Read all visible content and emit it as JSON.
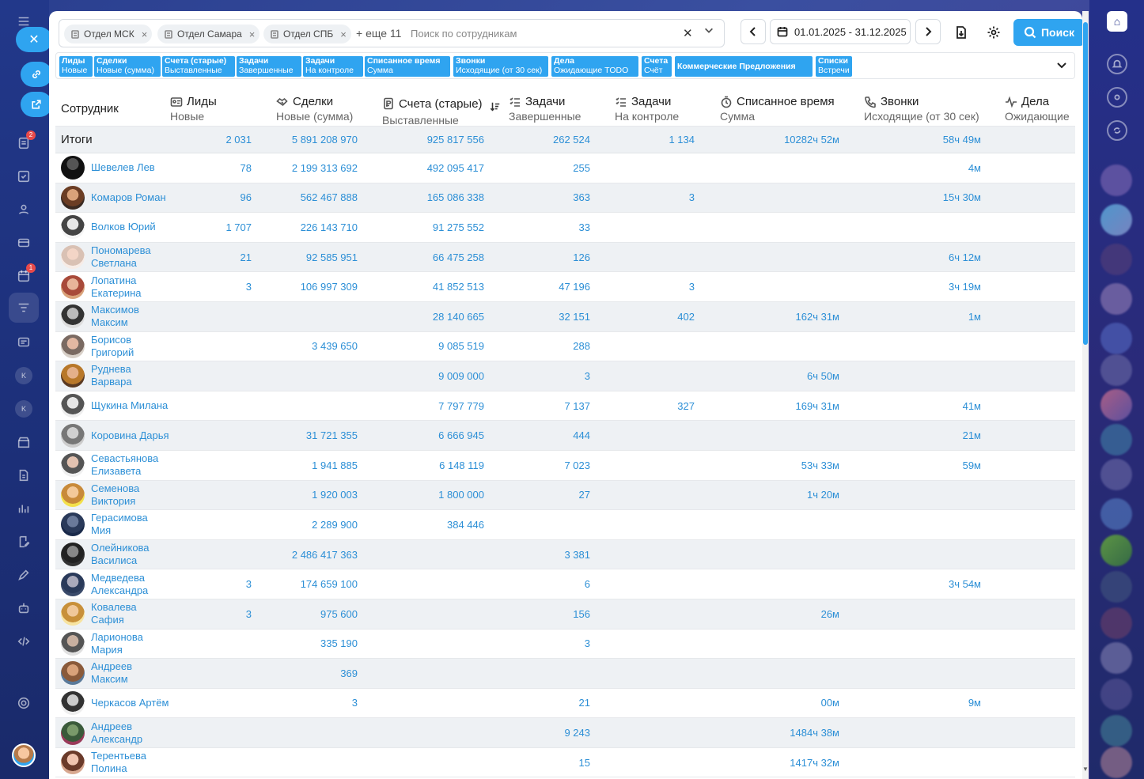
{
  "toolbar": {
    "chips": [
      "Отдел МСК",
      "Отдел Самара",
      "Отдел СПБ"
    ],
    "more": "+ еще 11",
    "search_placeholder": "Поиск по сотрудникам",
    "date_range": "01.01.2025 - 31.12.2025",
    "search_button": "Поиск"
  },
  "tags": [
    {
      "title": "Лиды",
      "sub": "Новые"
    },
    {
      "title": "Сделки",
      "sub": "Новые (сумма)"
    },
    {
      "title": "Счета (старые)",
      "sub": "Выставленные"
    },
    {
      "title": "Задачи",
      "sub": "Завершенные"
    },
    {
      "title": "Задачи",
      "sub": "На контроле"
    },
    {
      "title": "Списанное время",
      "sub": "Сумма"
    },
    {
      "title": "Звонки",
      "sub": "Исходящие (от 30 сек)"
    },
    {
      "title": "Дела",
      "sub": "Ожидающие TODO"
    },
    {
      "title": "Счета",
      "sub": "Счёт"
    },
    {
      "title": "Коммерческие Предложения",
      "sub": ""
    },
    {
      "title": "Списки",
      "sub": "Встречи"
    }
  ],
  "table": {
    "employee_header": "Сотрудник",
    "columns": [
      {
        "title": "Лиды",
        "sub": "Новые",
        "icon": "id-card-icon"
      },
      {
        "title": "Сделки",
        "sub": "Новые (сумма)",
        "icon": "handshake-icon"
      },
      {
        "title": "Счета (старые)",
        "sub": "Выставленные",
        "icon": "invoice-icon"
      },
      {
        "title": "Задачи",
        "sub": "Завершенные",
        "icon": "checklist-icon"
      },
      {
        "title": "Задачи",
        "sub": "На контроле",
        "icon": "checklist-icon"
      },
      {
        "title": "Списанное время",
        "sub": "Сумма",
        "icon": "timer-icon"
      },
      {
        "title": "Звонки",
        "sub": "Исходящие (от 30 сек)",
        "icon": "phone-icon"
      },
      {
        "title": "Дела",
        "sub": "Ожидающие",
        "icon": "activity-icon"
      }
    ],
    "totals_label": "Итоги",
    "totals": [
      "2 031",
      "5 891 208 970",
      "925 817 556",
      "262 524",
      "1 134",
      "10282ч 52м",
      "58ч 49м",
      ""
    ],
    "rows": [
      {
        "name": "Шевелев Лев",
        "values": [
          "78",
          "2 199 313 692",
          "492 095 417",
          "255",
          "",
          "",
          "4м",
          ""
        ]
      },
      {
        "name": "Комаров Роман",
        "values": [
          "96",
          "562 467 888",
          "165 086 338",
          "363",
          "3",
          "",
          "15ч 30м",
          ""
        ]
      },
      {
        "name": "Волков Юрий",
        "values": [
          "1 707",
          "226 143 710",
          "91 275 552",
          "33",
          "",
          "",
          "",
          ""
        ]
      },
      {
        "name": "Пономарева Светлана",
        "values": [
          "21",
          "92 585 951",
          "66 475 258",
          "126",
          "",
          "",
          "6ч 12м",
          ""
        ]
      },
      {
        "name": "Лопатина Екатерина",
        "values": [
          "3",
          "106 997 309",
          "41 852 513",
          "47 196",
          "3",
          "",
          "3ч 19м",
          ""
        ]
      },
      {
        "name": "Максимов Максим",
        "values": [
          "",
          "",
          "28 140 665",
          "32 151",
          "402",
          "162ч 31м",
          "1м",
          ""
        ]
      },
      {
        "name": "Борисов Григорий",
        "values": [
          "",
          "3 439 650",
          "9 085 519",
          "288",
          "",
          "",
          "",
          ""
        ]
      },
      {
        "name": "Руднева Варвара",
        "values": [
          "",
          "",
          "9 009 000",
          "3",
          "",
          "6ч 50м",
          "",
          ""
        ]
      },
      {
        "name": "Щукина Милана",
        "values": [
          "",
          "",
          "7 797 779",
          "7 137",
          "327",
          "169ч 31м",
          "41м",
          ""
        ]
      },
      {
        "name": "Коровина Дарья",
        "values": [
          "",
          "31 721 355",
          "6 666 945",
          "444",
          "",
          "",
          "21м",
          ""
        ]
      },
      {
        "name": "Севастьянова Елизавета",
        "values": [
          "",
          "1 941 885",
          "6 148 119",
          "7 023",
          "",
          "53ч 33м",
          "59м",
          ""
        ]
      },
      {
        "name": "Семенова Виктория",
        "values": [
          "",
          "1 920 003",
          "1 800 000",
          "27",
          "",
          "1ч 20м",
          "",
          ""
        ]
      },
      {
        "name": "Герасимова Мия",
        "values": [
          "",
          "2 289 900",
          "384 446",
          "",
          "",
          "",
          "",
          ""
        ]
      },
      {
        "name": "Олейникова Василиса",
        "values": [
          "",
          "2 486 417 363",
          "",
          "3 381",
          "",
          "",
          "",
          ""
        ]
      },
      {
        "name": "Медведева Александра",
        "values": [
          "3",
          "174 659 100",
          "",
          "6",
          "",
          "",
          "3ч 54м",
          ""
        ]
      },
      {
        "name": "Ковалева Сафия",
        "values": [
          "3",
          "975 600",
          "",
          "156",
          "",
          "26м",
          "",
          ""
        ]
      },
      {
        "name": "Ларионова Мария",
        "values": [
          "",
          "335 190",
          "",
          "3",
          "",
          "",
          "",
          ""
        ]
      },
      {
        "name": "Андреев Максим",
        "values": [
          "",
          "369",
          "",
          "",
          "",
          "",
          "",
          ""
        ]
      },
      {
        "name": "Черкасов Артём",
        "values": [
          "",
          "3",
          "",
          "21",
          "",
          "00м",
          "9м",
          ""
        ]
      },
      {
        "name": "Андреев Александр",
        "values": [
          "",
          "",
          "",
          "9 243",
          "",
          "1484ч 38м",
          "",
          ""
        ]
      },
      {
        "name": "Терентьева Полина",
        "values": [
          "",
          "",
          "",
          "15",
          "",
          "1417ч 32м",
          "",
          ""
        ]
      }
    ]
  },
  "colors": {
    "accent": "#2fa4f0",
    "link": "#2c8fd6",
    "row_alt": "#eef1f4"
  }
}
